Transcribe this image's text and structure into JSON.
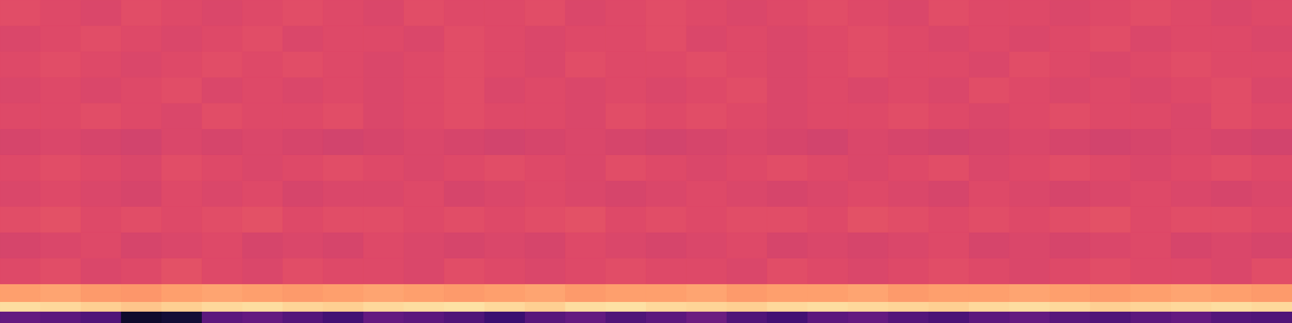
{
  "chart_data": {
    "type": "heatmap",
    "ylim": [
      0,
      100
    ],
    "y_bins": [
      0,
      3.5,
      6.5,
      12,
      20,
      28,
      36,
      44,
      52,
      60,
      68,
      76,
      84,
      92,
      100
    ],
    "zlim": [
      0,
      100
    ],
    "tick_labels": false,
    "grid": false,
    "cells": [
      [
        30,
        28,
        25,
        8,
        10,
        28,
        30,
        26,
        22,
        30,
        28,
        25,
        20,
        27,
        30,
        25,
        28,
        32,
        25,
        22,
        28,
        30,
        26,
        24,
        28,
        30,
        27,
        25,
        28,
        30,
        26,
        25
      ],
      [
        93,
        92,
        90,
        88,
        90,
        92,
        93,
        91,
        90,
        92,
        93,
        94,
        92,
        90,
        93,
        94,
        92,
        91,
        90,
        92,
        93,
        92,
        91,
        90,
        92,
        93,
        92,
        90,
        91,
        92,
        93,
        92
      ],
      [
        80,
        81,
        79,
        78,
        80,
        81,
        80,
        79,
        80,
        81,
        80,
        79,
        80,
        81,
        79,
        80,
        80,
        81,
        79,
        80,
        80,
        81,
        79,
        80,
        80,
        81,
        80,
        79,
        80,
        81,
        80,
        79
      ],
      [
        60,
        61,
        59,
        60,
        62,
        60,
        59,
        61,
        60,
        60,
        59,
        61,
        60,
        59,
        60,
        61,
        60,
        60,
        59,
        61,
        60,
        59,
        60,
        61,
        60,
        59,
        60,
        61,
        60,
        60,
        59,
        61
      ],
      [
        58,
        59,
        60,
        58,
        59,
        60,
        58,
        59,
        58,
        60,
        59,
        58,
        59,
        58,
        60,
        59,
        58,
        59,
        60,
        58,
        59,
        58,
        59,
        60,
        58,
        59,
        58,
        59,
        60,
        58,
        59,
        58
      ],
      [
        61,
        62,
        60,
        61,
        60,
        61,
        62,
        60,
        61,
        61,
        60,
        61,
        60,
        61,
        62,
        60,
        61,
        60,
        61,
        61,
        60,
        62,
        61,
        60,
        61,
        60,
        61,
        62,
        60,
        61,
        61,
        60
      ],
      [
        59,
        60,
        59,
        58,
        60,
        59,
        60,
        58,
        59,
        59,
        60,
        58,
        59,
        60,
        59,
        58,
        59,
        60,
        59,
        58,
        59,
        60,
        59,
        58,
        60,
        59,
        58,
        59,
        60,
        59,
        58,
        59
      ],
      [
        60,
        61,
        60,
        59,
        61,
        60,
        59,
        60,
        61,
        60,
        59,
        60,
        61,
        60,
        59,
        61,
        60,
        59,
        60,
        61,
        60,
        59,
        60,
        61,
        59,
        60,
        61,
        60,
        59,
        60,
        61,
        60
      ],
      [
        58,
        59,
        58,
        57,
        59,
        58,
        59,
        58,
        57,
        58,
        59,
        58,
        57,
        58,
        59,
        58,
        57,
        58,
        59,
        58,
        57,
        59,
        58,
        57,
        58,
        59,
        58,
        57,
        58,
        59,
        58,
        57
      ],
      [
        60,
        60,
        61,
        60,
        59,
        61,
        60,
        60,
        61,
        59,
        60,
        61,
        60,
        60,
        59,
        61,
        60,
        61,
        60,
        59,
        60,
        60,
        61,
        60,
        59,
        60,
        61,
        60,
        60,
        59,
        61,
        60
      ],
      [
        59,
        60,
        59,
        60,
        61,
        59,
        60,
        59,
        60,
        59,
        60,
        61,
        59,
        60,
        59,
        60,
        59,
        60,
        61,
        59,
        60,
        59,
        60,
        59,
        61,
        60,
        59,
        60,
        59,
        60,
        61,
        59
      ],
      [
        60,
        61,
        60,
        59,
        60,
        61,
        60,
        61,
        60,
        59,
        60,
        61,
        60,
        59,
        61,
        60,
        60,
        61,
        60,
        59,
        60,
        61,
        60,
        60,
        59,
        61,
        60,
        59,
        60,
        61,
        60,
        60
      ],
      [
        59,
        60,
        61,
        60,
        59,
        60,
        61,
        59,
        60,
        60,
        59,
        61,
        60,
        59,
        60,
        60,
        61,
        59,
        60,
        59,
        60,
        61,
        60,
        59,
        60,
        59,
        60,
        61,
        59,
        60,
        60,
        59
      ],
      [
        61,
        60,
        59,
        61,
        60,
        59,
        60,
        61,
        60,
        59,
        61,
        60,
        60,
        61,
        59,
        60,
        61,
        60,
        59,
        60,
        61,
        60,
        59,
        61,
        60,
        60,
        59,
        60,
        61,
        60,
        59,
        60
      ]
    ]
  }
}
